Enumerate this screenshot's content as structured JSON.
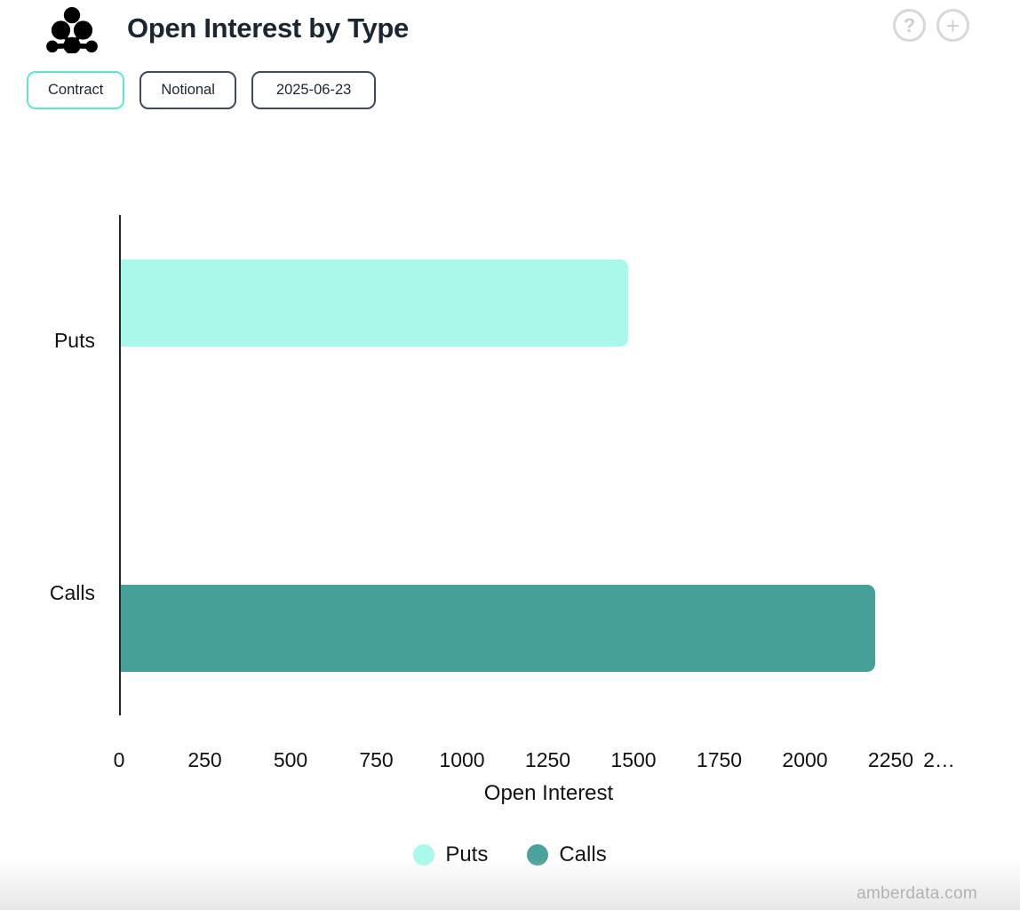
{
  "header": {
    "title": "Open Interest by Type",
    "help_icon_glyph": "?",
    "add_icon_glyph": "+"
  },
  "toolbar": {
    "buttons": [
      {
        "label": "Contract",
        "active": true
      },
      {
        "label": "Notional",
        "active": false
      },
      {
        "label": "2025-06-23",
        "active": false
      }
    ]
  },
  "chart_data": {
    "type": "bar",
    "orientation": "horizontal",
    "title": "Open Interest by Type",
    "categories": [
      "Puts",
      "Calls"
    ],
    "series": [
      {
        "name": "Puts",
        "value": 1480,
        "color": "#a8f9ea"
      },
      {
        "name": "Calls",
        "value": 2200,
        "color": "#47a098"
      }
    ],
    "xlabel": "Open Interest",
    "xlim": [
      0,
      2500
    ],
    "x_ticks": [
      {
        "label": "0",
        "value": 0
      },
      {
        "label": "250",
        "value": 250
      },
      {
        "label": "500",
        "value": 500
      },
      {
        "label": "750",
        "value": 750
      },
      {
        "label": "1000",
        "value": 1000
      },
      {
        "label": "1250",
        "value": 1250
      },
      {
        "label": "1500",
        "value": 1500
      },
      {
        "label": "1750",
        "value": 1750
      },
      {
        "label": "2000",
        "value": 2000
      },
      {
        "label": "2250",
        "value": 2250
      },
      {
        "label": "2…",
        "value": 2500
      }
    ],
    "grid": false,
    "legend": {
      "position": "bottom",
      "items": [
        {
          "label": "Puts",
          "color": "#aaf9ec"
        },
        {
          "label": "Calls",
          "color": "#4aa29b"
        }
      ]
    }
  },
  "watermark": "amberdata.com",
  "colors": {
    "accent_teal": "#5fe6d0",
    "dark_navy": "#1b2633",
    "button_border_dark": "#3f4a5c",
    "axis_line": "#262626",
    "muted_icon_gray": "#d8d8d8",
    "watermark_gray": "#b2b2b2"
  }
}
